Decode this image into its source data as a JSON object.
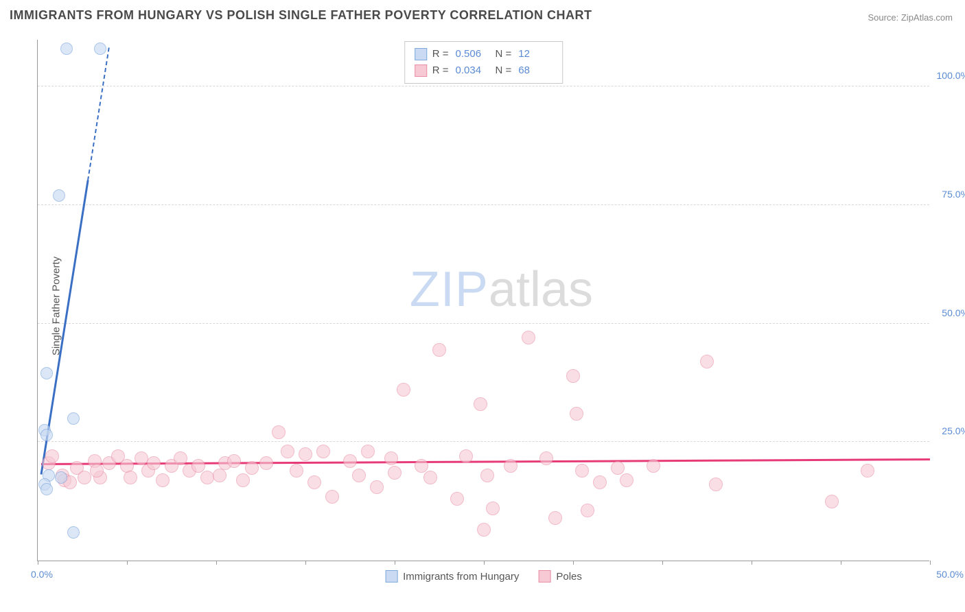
{
  "title": "IMMIGRANTS FROM HUNGARY VS POLISH SINGLE FATHER POVERTY CORRELATION CHART",
  "source_label": "Source: ",
  "source_name": "ZipAtlas.com",
  "ylabel": "Single Father Poverty",
  "watermark": {
    "part1": "ZIP",
    "part2": "atlas"
  },
  "chart": {
    "type": "scatter",
    "xlim": [
      0,
      50
    ],
    "ylim": [
      0,
      110
    ],
    "x_origin_label": "0.0%",
    "x_max_label": "50.0%",
    "xtick_positions": [
      0,
      5,
      10,
      15,
      20,
      25,
      30,
      35,
      40,
      45,
      50
    ],
    "y_gridlines": [
      25,
      50,
      75,
      100
    ],
    "y_tick_labels": [
      "25.0%",
      "50.0%",
      "75.0%",
      "100.0%"
    ],
    "grid_color": "#d8d8d8",
    "axis_color": "#999999",
    "tick_label_color": "#5b8bd4",
    "background_color": "#ffffff"
  },
  "series": {
    "hungary": {
      "label": "Immigrants from Hungary",
      "fill": "#c9daf2",
      "stroke": "#7fa8dd",
      "line_color": "#3b6fc4",
      "marker_radius": 9,
      "fill_opacity": 0.65,
      "R": "0.506",
      "N": "12",
      "points": [
        [
          1.6,
          108
        ],
        [
          3.5,
          108
        ],
        [
          1.2,
          77
        ],
        [
          0.5,
          39.5
        ],
        [
          0.4,
          27.5
        ],
        [
          0.5,
          26.5
        ],
        [
          2.0,
          30
        ],
        [
          1.3,
          17.5
        ],
        [
          0.6,
          18
        ],
        [
          0.4,
          16
        ],
        [
          0.5,
          15
        ],
        [
          2.0,
          6
        ]
      ],
      "trend": {
        "x1": 0.2,
        "y1": 18,
        "x2": 4.0,
        "y2": 108,
        "dash_to_y": 80
      }
    },
    "poles": {
      "label": "Poles",
      "fill": "#f6c9d4",
      "stroke": "#e98fa6",
      "line_color": "#e73b78",
      "marker_radius": 10,
      "fill_opacity": 0.6,
      "R": "0.034",
      "N": "68",
      "points": [
        [
          0.6,
          20.5
        ],
        [
          0.8,
          22
        ],
        [
          1.4,
          18
        ],
        [
          1.5,
          17
        ],
        [
          1.8,
          16.5
        ],
        [
          2.2,
          19.5
        ],
        [
          2.6,
          17.5
        ],
        [
          3.2,
          21
        ],
        [
          3.5,
          17.5
        ],
        [
          3.3,
          19
        ],
        [
          4.0,
          20.5
        ],
        [
          4.5,
          22
        ],
        [
          5.0,
          20
        ],
        [
          5.2,
          17.5
        ],
        [
          5.8,
          21.5
        ],
        [
          6.2,
          19
        ],
        [
          6.5,
          20.5
        ],
        [
          7.0,
          17
        ],
        [
          7.5,
          20
        ],
        [
          8.0,
          21.5
        ],
        [
          8.5,
          19
        ],
        [
          9.0,
          20
        ],
        [
          9.5,
          17.5
        ],
        [
          10.5,
          20.5
        ],
        [
          10.2,
          18
        ],
        [
          11.0,
          21
        ],
        [
          11.5,
          17
        ],
        [
          12.0,
          19.5
        ],
        [
          12.8,
          20.5
        ],
        [
          13.5,
          27
        ],
        [
          14.0,
          23
        ],
        [
          14.5,
          19
        ],
        [
          15.5,
          16.5
        ],
        [
          15.0,
          22.5
        ],
        [
          16.5,
          13.5
        ],
        [
          16.0,
          23
        ],
        [
          17.5,
          21
        ],
        [
          18.0,
          18
        ],
        [
          18.5,
          23
        ],
        [
          19.0,
          15.5
        ],
        [
          19.8,
          21.5
        ],
        [
          20.0,
          18.5
        ],
        [
          20.5,
          36
        ],
        [
          21.5,
          20
        ],
        [
          22.5,
          44.5
        ],
        [
          22.0,
          17.5
        ],
        [
          23.5,
          13
        ],
        [
          24.0,
          22
        ],
        [
          24.8,
          33
        ],
        [
          25.0,
          6.5
        ],
        [
          25.2,
          18
        ],
        [
          25.5,
          11
        ],
        [
          26.5,
          20
        ],
        [
          27.5,
          47
        ],
        [
          28.5,
          21.5
        ],
        [
          29.0,
          9
        ],
        [
          30.0,
          39
        ],
        [
          30.2,
          31
        ],
        [
          30.5,
          19
        ],
        [
          30.8,
          10.5
        ],
        [
          31.5,
          16.5
        ],
        [
          32.5,
          19.5
        ],
        [
          33.0,
          17
        ],
        [
          34.5,
          20
        ],
        [
          37.5,
          42
        ],
        [
          38.0,
          16
        ],
        [
          44.5,
          12.5
        ],
        [
          46.5,
          19
        ]
      ],
      "trend": {
        "x1": 0.2,
        "y1": 20.2,
        "x2": 50,
        "y2": 21.2
      }
    }
  },
  "legend_top": {
    "R_label": "R =",
    "N_label": "N ="
  }
}
